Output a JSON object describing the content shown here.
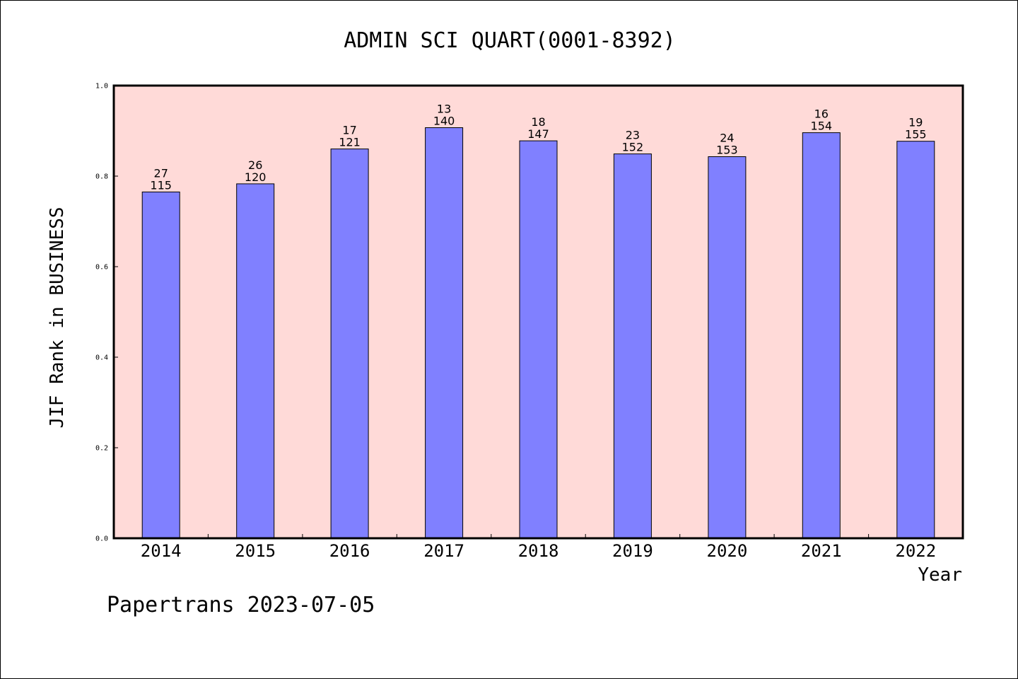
{
  "chart_data": {
    "type": "bar",
    "title": "ADMIN SCI QUART(0001-8392)",
    "xlabel": "Year",
    "ylabel": "JIF Rank in BUSINESS",
    "categories": [
      "2014",
      "2015",
      "2016",
      "2017",
      "2018",
      "2019",
      "2020",
      "2021",
      "2022"
    ],
    "values": [
      0.765,
      0.783,
      0.86,
      0.907,
      0.878,
      0.849,
      0.843,
      0.896,
      0.877
    ],
    "label_top": [
      "27",
      "26",
      "17",
      "13",
      "18",
      "23",
      "24",
      "16",
      "19"
    ],
    "label_bottom": [
      "115",
      "120",
      "121",
      "140",
      "147",
      "152",
      "153",
      "154",
      "155"
    ],
    "ylim": [
      0,
      1.0
    ],
    "yticks": [
      "0.0",
      "0.2",
      "0.4",
      "0.6",
      "0.8",
      "1.0"
    ],
    "grid": false,
    "colors": {
      "plot_background": "#ffdad8",
      "bar_fill": "#8080ff",
      "bar_stroke": "#000000"
    }
  },
  "footer": {
    "text": "Papertrans 2023-07-05"
  }
}
